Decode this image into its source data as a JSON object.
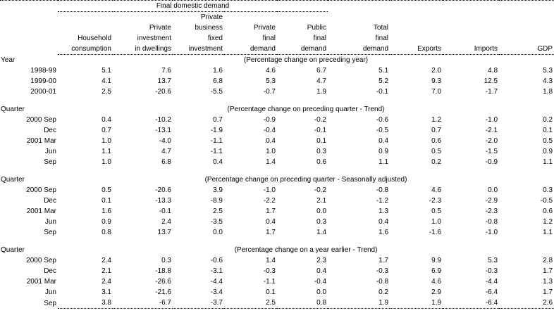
{
  "colors": {
    "text": "#000000",
    "background": "#ffffff",
    "rule": "#000000"
  },
  "table": {
    "group_header": "Final domestic demand",
    "columns": [
      {
        "lines": [
          "Household",
          "consumption"
        ]
      },
      {
        "lines": [
          "Private",
          "investment",
          "in dwellings"
        ]
      },
      {
        "lines": [
          "Private",
          "business",
          "fixed",
          "investment"
        ]
      },
      {
        "lines": [
          "Private",
          "final",
          "demand"
        ]
      },
      {
        "lines": [
          "Public",
          "final",
          "demand"
        ]
      },
      {
        "lines": [
          "Total",
          "final",
          "demand"
        ]
      },
      {
        "lines": [
          "Exports"
        ]
      },
      {
        "lines": [
          "Imports"
        ]
      },
      {
        "lines": [
          "GDP"
        ]
      }
    ],
    "sections": [
      {
        "label": "Year",
        "note": "(Percentage change on preceding year)",
        "rows": [
          {
            "label": "1998-99",
            "values": [
              "5.1",
              "7.6",
              "1.6",
              "4.6",
              "6.7",
              "5.1",
              "2.0",
              "4.8",
              "5.3"
            ]
          },
          {
            "label": "1999-00",
            "values": [
              "4.1",
              "13.7",
              "6.8",
              "5.3",
              "4.7",
              "5.2",
              "9.3",
              "12.5",
              "4.3"
            ]
          },
          {
            "label": "2000-01",
            "values": [
              "2.5",
              "-20.6",
              "-5.5",
              "-0.7",
              "1.9",
              "-0.1",
              "7.0",
              "-1.7",
              "1.8"
            ]
          }
        ]
      },
      {
        "label": "Quarter",
        "note": "(Percentage change on preceding quarter - Trend)",
        "rows": [
          {
            "label": "2000 Sep",
            "values": [
              "0.4",
              "-10.2",
              "0.7",
              "-0.9",
              "-0.2",
              "-0.6",
              "1.2",
              "-1.0",
              "0.2"
            ]
          },
          {
            "label": "Dec",
            "values": [
              "0.7",
              "-13.1",
              "-1.9",
              "-0.4",
              "-0.1",
              "-0.5",
              "0.7",
              "-2.1",
              "0.1"
            ]
          },
          {
            "label": "2001 Mar",
            "values": [
              "1.0",
              "-4.0",
              "-1.1",
              "0.4",
              "0.1",
              "0.4",
              "0.6",
              "-2.0",
              "0.5"
            ]
          },
          {
            "label": "Jun",
            "values": [
              "1.1",
              "4.7",
              "-1.1",
              "1.0",
              "0.3",
              "0.9",
              "0.5",
              "-1.5",
              "0.9"
            ]
          },
          {
            "label": "Sep",
            "values": [
              "1.0",
              "6.8",
              "0.4",
              "1.4",
              "0.6",
              "1.1",
              "0.2",
              "-0.9",
              "1.1"
            ]
          }
        ]
      },
      {
        "label": "Quarter",
        "note": "(Percentage change on preceding quarter - Seasonally adjusted)",
        "rows": [
          {
            "label": "2000 Sep",
            "values": [
              "0.5",
              "-20.6",
              "3.9",
              "-1.0",
              "-0.2",
              "-0.8",
              "4.6",
              "0.0",
              "0.3"
            ]
          },
          {
            "label": "Dec",
            "values": [
              "0.1",
              "-13.3",
              "-8.9",
              "-2.2",
              "2.1",
              "-1.2",
              "-2.3",
              "-2.9",
              "-0.5"
            ]
          },
          {
            "label": "2001 Mar",
            "values": [
              "1.6",
              "-0.1",
              "2.5",
              "1.7",
              "0.0",
              "1.3",
              "0.5",
              "-2.3",
              "0.6"
            ]
          },
          {
            "label": "Jun",
            "values": [
              "0.9",
              "2.4",
              "-3.5",
              "0.4",
              "0.3",
              "0.4",
              "1.0",
              "-0.8",
              "1.2"
            ]
          },
          {
            "label": "Sep",
            "values": [
              "0.8",
              "13.7",
              "0.0",
              "1.7",
              "1.4",
              "1.6",
              "-1.6",
              "-1.0",
              "1.1"
            ]
          }
        ]
      },
      {
        "label": "Quarter",
        "note": "(Percentage change on a year earlier - Trend)",
        "rows": [
          {
            "label": "2000 Sep",
            "values": [
              "2.4",
              "0.3",
              "-0.6",
              "1.4",
              "2.3",
              "1.7",
              "9.9",
              "5.3",
              "2.8"
            ]
          },
          {
            "label": "Dec",
            "values": [
              "2.1",
              "-18.8",
              "-3.1",
              "-0.3",
              "0.4",
              "-0.3",
              "6.9",
              "-0.3",
              "1.7"
            ]
          },
          {
            "label": "2001 Mar",
            "values": [
              "2.4",
              "-26.6",
              "-4.4",
              "-1.1",
              "-0.4",
              "-0.8",
              "4.6",
              "-4.4",
              "1.3"
            ]
          },
          {
            "label": "Jun",
            "values": [
              "3.1",
              "-21.6",
              "-3.4",
              "0.1",
              "0.0",
              "0.2",
              "2.9",
              "-6.4",
              "1.7"
            ]
          },
          {
            "label": "Sep",
            "values": [
              "3.8",
              "-6.7",
              "-3.7",
              "2.5",
              "0.8",
              "1.9",
              "1.9",
              "-6.4",
              "2.6"
            ]
          }
        ]
      }
    ]
  }
}
